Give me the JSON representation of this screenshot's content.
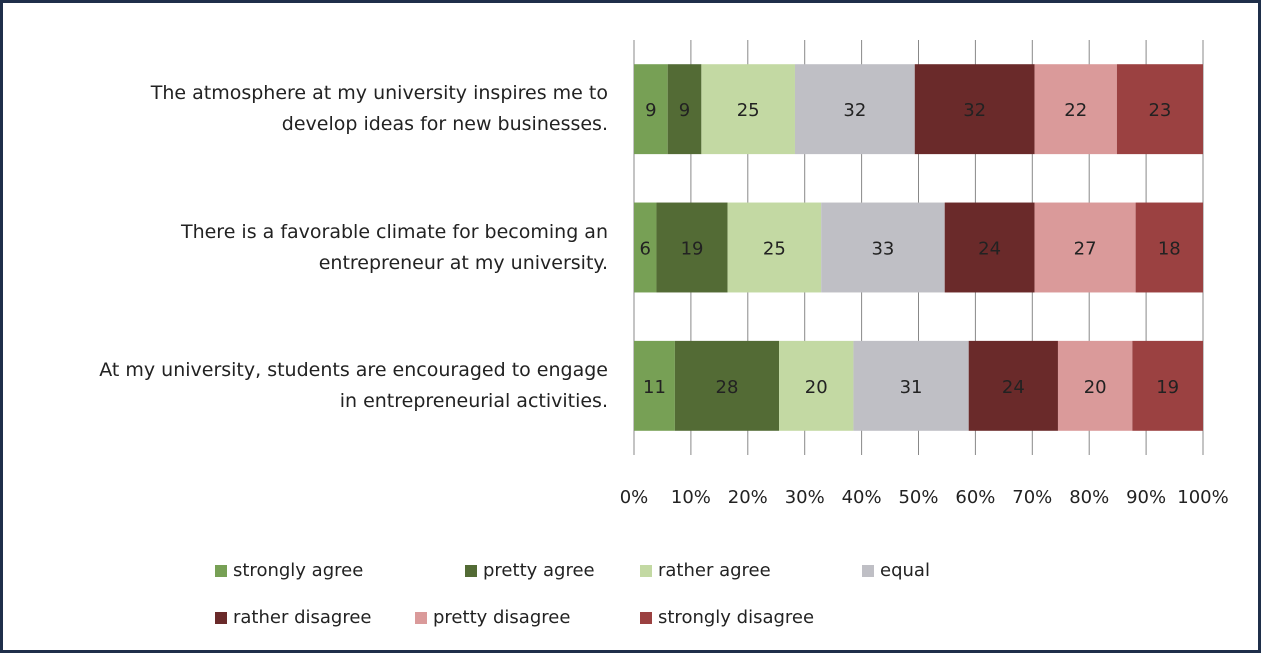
{
  "chart_data": {
    "type": "bar",
    "orientation": "horizontal",
    "stacked": "percent",
    "categories": [
      "The atmosphere at my university inspires me to develop ideas for new businesses.",
      "There is a favorable climate for becoming an entrepreneur at my university.",
      "At my university, students are encouraged to engage in entrepreneurial activities."
    ],
    "series": [
      {
        "name": "strongly agree",
        "color": "#77a055",
        "values": [
          9,
          6,
          11
        ]
      },
      {
        "name": "pretty agree",
        "color": "#536b35",
        "values": [
          9,
          19,
          28
        ]
      },
      {
        "name": "rather agree",
        "color": "#c3d9a3",
        "values": [
          25,
          25,
          20
        ]
      },
      {
        "name": "equal",
        "color": "#bfbfc5",
        "values": [
          32,
          33,
          31
        ]
      },
      {
        "name": "rather disagree",
        "color": "#6a2a2a",
        "values": [
          32,
          24,
          24
        ]
      },
      {
        "name": "pretty disagree",
        "color": "#da9a9a",
        "values": [
          22,
          27,
          20
        ]
      },
      {
        "name": "strongly disagree",
        "color": "#9b4141",
        "values": [
          23,
          18,
          19
        ]
      }
    ],
    "xlim": [
      0,
      100
    ],
    "xticks": [
      {
        "value": 0,
        "label": "0%"
      },
      {
        "value": 10,
        "label": "10%"
      },
      {
        "value": 20,
        "label": "20%"
      },
      {
        "value": 30,
        "label": "30%"
      },
      {
        "value": 40,
        "label": "40%"
      },
      {
        "value": 50,
        "label": "50%"
      },
      {
        "value": 60,
        "label": "60%"
      },
      {
        "value": 70,
        "label": "70%"
      },
      {
        "value": 80,
        "label": "80%"
      },
      {
        "value": 90,
        "label": "90%"
      },
      {
        "value": 100,
        "label": "100%"
      }
    ],
    "grid": true,
    "legend": "bottom"
  }
}
